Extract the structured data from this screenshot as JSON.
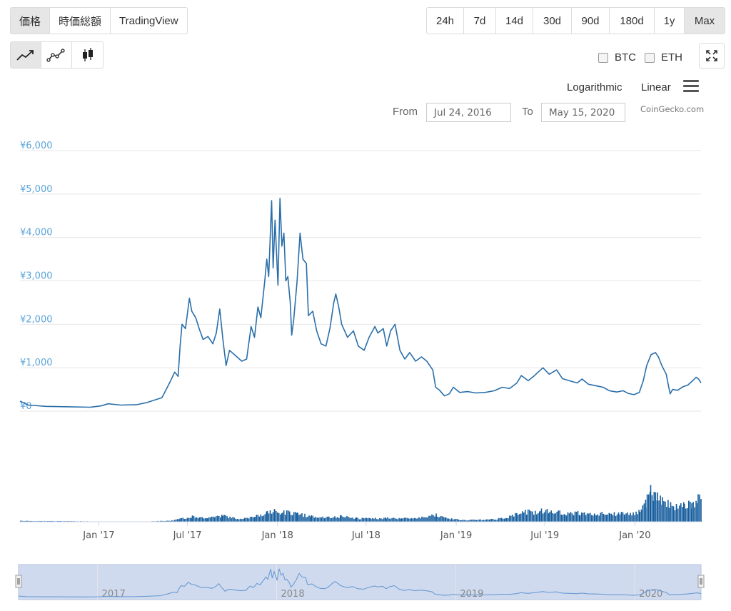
{
  "tabs": [
    {
      "label": "価格",
      "active": true
    },
    {
      "label": "時価総額",
      "active": false
    },
    {
      "label": "TradingView",
      "active": false
    }
  ],
  "ranges": [
    {
      "label": "24h",
      "active": false
    },
    {
      "label": "7d",
      "active": false
    },
    {
      "label": "14d",
      "active": false
    },
    {
      "label": "30d",
      "active": false
    },
    {
      "label": "90d",
      "active": false
    },
    {
      "label": "180d",
      "active": false
    },
    {
      "label": "1y",
      "active": false
    },
    {
      "label": "Max",
      "active": true
    }
  ],
  "chart_types": [
    {
      "icon": "line-chart-icon",
      "active": true
    },
    {
      "icon": "ohlc-line-icon",
      "active": false
    },
    {
      "icon": "candlestick-icon",
      "active": false
    }
  ],
  "compare": {
    "btc": "BTC",
    "eth": "ETH"
  },
  "scale": {
    "log": "Logarithmic",
    "linear": "Linear"
  },
  "date_range": {
    "from_label": "From",
    "from_value": "Jul 24, 2016",
    "to_label": "To",
    "to_value": "May 15, 2020"
  },
  "credit": "CoinGecko.com",
  "colors": {
    "line": "#2a6faa",
    "volume": "#155c9c",
    "axis_text": "#5aa4d8",
    "navigator_bg": "#cfdaee"
  },
  "chart_data": {
    "type": "line",
    "x_range": [
      "2016-07-24",
      "2020-05-15"
    ],
    "y_range": [
      0,
      6000
    ],
    "y_ticks": [
      "¥0",
      "¥1,000",
      "¥2,000",
      "¥3,000",
      "¥4,000",
      "¥5,000",
      "¥6,000"
    ],
    "y_tick_values": [
      0,
      1000,
      2000,
      3000,
      4000,
      5000,
      6000
    ],
    "x_ticks": [
      {
        "label": "Jan '17",
        "date": "2017-01-01"
      },
      {
        "label": "Jul '17",
        "date": "2017-07-01"
      },
      {
        "label": "Jan '18",
        "date": "2018-01-01"
      },
      {
        "label": "Jul '18",
        "date": "2018-07-01"
      },
      {
        "label": "Jan '19",
        "date": "2019-01-01"
      },
      {
        "label": "Jul '19",
        "date": "2019-07-01"
      },
      {
        "label": "Jan '20",
        "date": "2020-01-01"
      }
    ],
    "navigator_ticks": [
      {
        "label": "2017",
        "date": "2017-01-01"
      },
      {
        "label": "2018",
        "date": "2018-01-01"
      },
      {
        "label": "2019",
        "date": "2019-01-01"
      },
      {
        "label": "2020",
        "date": "2020-01-01"
      }
    ],
    "price": [
      [
        "2016-07-24",
        230
      ],
      [
        "2016-08-10",
        140
      ],
      [
        "2016-09-15",
        110
      ],
      [
        "2016-11-01",
        100
      ],
      [
        "2016-12-15",
        90
      ],
      [
        "2017-01-05",
        120
      ],
      [
        "2017-01-20",
        170
      ],
      [
        "2017-02-15",
        140
      ],
      [
        "2017-03-20",
        150
      ],
      [
        "2017-04-10",
        200
      ],
      [
        "2017-05-10",
        310
      ],
      [
        "2017-05-25",
        640
      ],
      [
        "2017-06-05",
        900
      ],
      [
        "2017-06-12",
        800
      ],
      [
        "2017-06-16",
        1500
      ],
      [
        "2017-06-20",
        2000
      ],
      [
        "2017-06-27",
        1900
      ],
      [
        "2017-07-05",
        2600
      ],
      [
        "2017-07-10",
        2300
      ],
      [
        "2017-07-18",
        2150
      ],
      [
        "2017-07-25",
        1900
      ],
      [
        "2017-08-02",
        1650
      ],
      [
        "2017-08-12",
        1720
      ],
      [
        "2017-08-22",
        1550
      ],
      [
        "2017-08-29",
        1800
      ],
      [
        "2017-09-05",
        2350
      ],
      [
        "2017-09-12",
        1600
      ],
      [
        "2017-09-18",
        1050
      ],
      [
        "2017-09-25",
        1400
      ],
      [
        "2017-10-05",
        1300
      ],
      [
        "2017-10-20",
        1150
      ],
      [
        "2017-10-30",
        1200
      ],
      [
        "2017-11-08",
        1950
      ],
      [
        "2017-11-15",
        1700
      ],
      [
        "2017-11-22",
        2400
      ],
      [
        "2017-11-28",
        2150
      ],
      [
        "2017-12-06",
        3000
      ],
      [
        "2017-12-10",
        3500
      ],
      [
        "2017-12-14",
        3100
      ],
      [
        "2017-12-20",
        4850
      ],
      [
        "2017-12-23",
        3300
      ],
      [
        "2017-12-27",
        4400
      ],
      [
        "2018-01-02",
        2900
      ],
      [
        "2018-01-06",
        4900
      ],
      [
        "2018-01-10",
        3800
      ],
      [
        "2018-01-14",
        4100
      ],
      [
        "2018-01-18",
        3000
      ],
      [
        "2018-01-22",
        3100
      ],
      [
        "2018-01-27",
        2500
      ],
      [
        "2018-01-30",
        1750
      ],
      [
        "2018-02-03",
        2100
      ],
      [
        "2018-02-10",
        3000
      ],
      [
        "2018-02-16",
        4100
      ],
      [
        "2018-02-22",
        3500
      ],
      [
        "2018-03-01",
        3400
      ],
      [
        "2018-03-05",
        2200
      ],
      [
        "2018-03-14",
        2300
      ],
      [
        "2018-03-22",
        1850
      ],
      [
        "2018-03-31",
        1550
      ],
      [
        "2018-04-10",
        1500
      ],
      [
        "2018-04-18",
        1900
      ],
      [
        "2018-04-26",
        2500
      ],
      [
        "2018-04-30",
        2700
      ],
      [
        "2018-05-06",
        2400
      ],
      [
        "2018-05-12",
        2000
      ],
      [
        "2018-05-24",
        1700
      ],
      [
        "2018-06-05",
        1850
      ],
      [
        "2018-06-15",
        1500
      ],
      [
        "2018-06-27",
        1400
      ],
      [
        "2018-07-07",
        1700
      ],
      [
        "2018-07-19",
        1950
      ],
      [
        "2018-07-25",
        1800
      ],
      [
        "2018-08-05",
        1900
      ],
      [
        "2018-08-12",
        1500
      ],
      [
        "2018-08-20",
        1850
      ],
      [
        "2018-08-29",
        2000
      ],
      [
        "2018-09-08",
        1400
      ],
      [
        "2018-09-18",
        1200
      ],
      [
        "2018-09-28",
        1350
      ],
      [
        "2018-10-10",
        1150
      ],
      [
        "2018-10-22",
        1250
      ],
      [
        "2018-11-02",
        1150
      ],
      [
        "2018-11-14",
        950
      ],
      [
        "2018-11-20",
        550
      ],
      [
        "2018-11-28",
        480
      ],
      [
        "2018-12-08",
        350
      ],
      [
        "2018-12-18",
        400
      ],
      [
        "2018-12-26",
        550
      ],
      [
        "2019-01-08",
        430
      ],
      [
        "2019-01-24",
        450
      ],
      [
        "2019-02-10",
        420
      ],
      [
        "2019-03-01",
        430
      ],
      [
        "2019-03-20",
        470
      ],
      [
        "2019-04-05",
        550
      ],
      [
        "2019-04-20",
        520
      ],
      [
        "2019-05-05",
        650
      ],
      [
        "2019-05-14",
        820
      ],
      [
        "2019-05-28",
        700
      ],
      [
        "2019-06-10",
        820
      ],
      [
        "2019-06-27",
        1000
      ],
      [
        "2019-07-10",
        850
      ],
      [
        "2019-07-25",
        950
      ],
      [
        "2019-08-06",
        750
      ],
      [
        "2019-08-20",
        700
      ],
      [
        "2019-09-05",
        650
      ],
      [
        "2019-09-15",
        740
      ],
      [
        "2019-09-28",
        620
      ],
      [
        "2019-10-15",
        580
      ],
      [
        "2019-10-28",
        550
      ],
      [
        "2019-11-10",
        470
      ],
      [
        "2019-11-25",
        440
      ],
      [
        "2019-12-08",
        470
      ],
      [
        "2019-12-18",
        410
      ],
      [
        "2019-12-30",
        380
      ],
      [
        "2020-01-10",
        430
      ],
      [
        "2020-01-18",
        700
      ],
      [
        "2020-01-25",
        1050
      ],
      [
        "2020-02-03",
        1300
      ],
      [
        "2020-02-12",
        1350
      ],
      [
        "2020-02-18",
        1250
      ],
      [
        "2020-02-25",
        1050
      ],
      [
        "2020-03-05",
        850
      ],
      [
        "2020-03-10",
        560
      ],
      [
        "2020-03-13",
        400
      ],
      [
        "2020-03-18",
        500
      ],
      [
        "2020-03-28",
        480
      ],
      [
        "2020-04-08",
        560
      ],
      [
        "2020-04-18",
        600
      ],
      [
        "2020-04-28",
        700
      ],
      [
        "2020-05-05",
        780
      ],
      [
        "2020-05-10",
        740
      ],
      [
        "2020-05-15",
        650
      ]
    ],
    "volume_relative": [
      [
        "2016-07-24",
        0.02
      ],
      [
        "2017-04-01",
        0.0
      ],
      [
        "2017-06-01",
        0.03
      ],
      [
        "2017-06-15",
        0.07
      ],
      [
        "2017-07-10",
        0.12
      ],
      [
        "2017-08-10",
        0.08
      ],
      [
        "2017-09-10",
        0.14
      ],
      [
        "2017-10-10",
        0.06
      ],
      [
        "2017-11-15",
        0.12
      ],
      [
        "2017-12-10",
        0.2
      ],
      [
        "2017-12-25",
        0.28
      ],
      [
        "2018-01-10",
        0.22
      ],
      [
        "2018-02-10",
        0.18
      ],
      [
        "2018-03-10",
        0.12
      ],
      [
        "2018-04-15",
        0.1
      ],
      [
        "2018-05-10",
        0.13
      ],
      [
        "2018-06-10",
        0.08
      ],
      [
        "2018-07-10",
        0.07
      ],
      [
        "2018-08-10",
        0.09
      ],
      [
        "2018-09-10",
        0.08
      ],
      [
        "2018-10-10",
        0.07
      ],
      [
        "2018-11-20",
        0.16
      ],
      [
        "2018-12-10",
        0.08
      ],
      [
        "2019-01-10",
        0.04
      ],
      [
        "2019-02-10",
        0.04
      ],
      [
        "2019-03-10",
        0.05
      ],
      [
        "2019-04-10",
        0.08
      ],
      [
        "2019-05-15",
        0.22
      ],
      [
        "2019-06-20",
        0.24
      ],
      [
        "2019-07-10",
        0.25
      ],
      [
        "2019-08-10",
        0.18
      ],
      [
        "2019-09-10",
        0.2
      ],
      [
        "2019-10-10",
        0.17
      ],
      [
        "2019-11-10",
        0.19
      ],
      [
        "2019-12-10",
        0.18
      ],
      [
        "2020-01-10",
        0.22
      ],
      [
        "2020-01-22",
        0.45
      ],
      [
        "2020-02-01",
        0.95
      ],
      [
        "2020-02-08",
        0.55
      ],
      [
        "2020-02-15",
        0.65
      ],
      [
        "2020-02-25",
        0.5
      ],
      [
        "2020-03-10",
        0.45
      ],
      [
        "2020-03-25",
        0.35
      ],
      [
        "2020-04-10",
        0.4
      ],
      [
        "2020-04-25",
        0.38
      ],
      [
        "2020-05-08",
        0.55
      ],
      [
        "2020-05-15",
        0.45
      ]
    ],
    "grid": true,
    "legend": "none"
  }
}
